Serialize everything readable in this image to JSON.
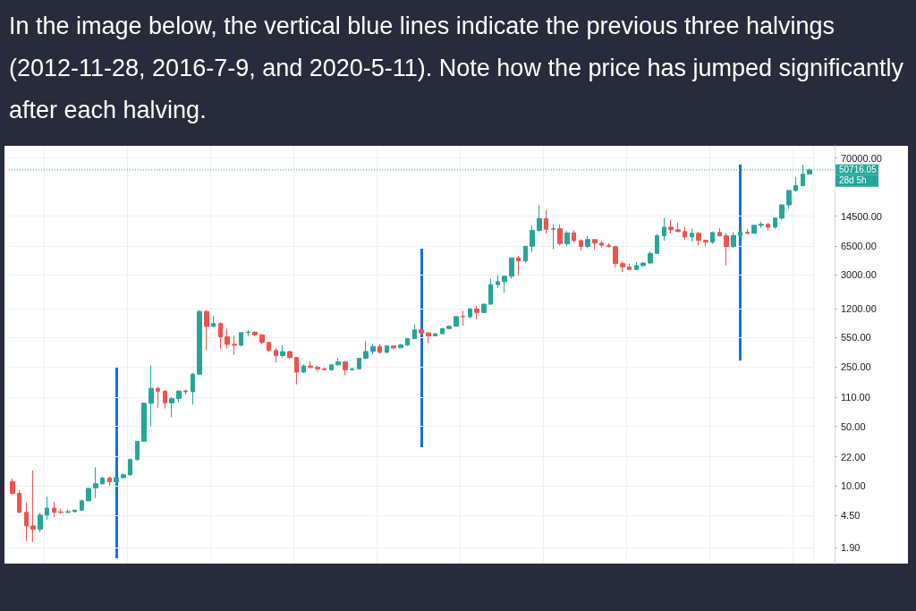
{
  "chart_data": {
    "type": "candlestick",
    "title": "In the image below, the vertical blue lines indicate the previous three halvings (2012-11-28, 2016-7-9, and 2020-5-11). Note how the price has jumped significantly after each halving.",
    "categories": [
      null,
      null,
      null,
      null,
      null,
      null,
      null,
      null,
      null,
      null,
      null,
      null,
      null,
      null,
      null,
      null,
      null,
      null,
      null,
      null,
      null,
      null,
      null,
      null,
      null,
      null,
      null,
      null,
      null,
      null,
      null,
      null,
      null,
      null,
      null,
      null,
      null,
      null,
      null,
      null,
      null,
      null,
      null,
      null,
      null,
      null,
      null,
      null,
      null,
      null,
      null,
      null,
      null,
      null,
      null,
      null,
      null,
      null,
      null,
      null,
      null,
      null,
      null,
      null,
      null,
      null,
      null,
      null,
      null,
      null,
      null,
      null,
      null,
      null,
      null,
      null,
      null,
      null,
      null,
      null,
      null,
      null,
      null,
      null,
      null,
      null,
      null,
      null,
      null,
      null,
      null,
      null,
      null,
      null,
      null,
      null,
      null,
      null,
      null,
      null,
      null,
      null,
      null,
      null,
      null,
      null,
      null,
      null,
      null,
      null,
      null,
      null,
      null,
      null,
      null,
      null
    ],
    "ohlc": [
      [
        11.3,
        12.2,
        7.9,
        8.2
      ],
      [
        8.2,
        8.9,
        4.85,
        4.9
      ],
      [
        4.9,
        6.4,
        2.26,
        3.4
      ],
      [
        3.4,
        15.2,
        2.2,
        3.1
      ],
      [
        3.1,
        4.85,
        2.87,
        4.55
      ],
      [
        4.55,
        7.5,
        4.0,
        5.5
      ],
      [
        5.5,
        6.5,
        4.3,
        4.9
      ],
      [
        4.95,
        5.4,
        4.7,
        4.9
      ],
      [
        4.9,
        5.3,
        4.8,
        5.0
      ],
      [
        5.0,
        5.3,
        4.9,
        5.2
      ],
      [
        5.2,
        6.9,
        5.1,
        6.7
      ],
      [
        6.7,
        9.6,
        6.6,
        9.35
      ],
      [
        9.5,
        16.5,
        7.2,
        10.6
      ],
      [
        10.6,
        12.8,
        10.4,
        12.4
      ],
      [
        12.4,
        12.9,
        10.0,
        11.2
      ],
      [
        11.2,
        12.6,
        10.5,
        12.5
      ],
      [
        12.5,
        14.0,
        12.3,
        13.5
      ],
      [
        13.5,
        21,
        13.2,
        20.4
      ],
      [
        20.4,
        33.5,
        19.6,
        33.4
      ],
      [
        33.4,
        95,
        33.4,
        93
      ],
      [
        93,
        260,
        50,
        139
      ],
      [
        139,
        145,
        82,
        129
      ],
      [
        129,
        132,
        81,
        94
      ],
      [
        94,
        110,
        64,
        106
      ],
      [
        106,
        132,
        96,
        129
      ],
      [
        130,
        135,
        118,
        127
      ],
      [
        127,
        212,
        90,
        204
      ],
      [
        204,
        1150,
        200,
        1110
      ],
      [
        1110,
        1150,
        390,
        740
      ],
      [
        740,
        990,
        730,
        800
      ],
      [
        800,
        830,
        405,
        560
      ],
      [
        560,
        700,
        410,
        457
      ],
      [
        457,
        580,
        345,
        445
      ],
      [
        445,
        635,
        440,
        628
      ],
      [
        628,
        670,
        570,
        636
      ],
      [
        636,
        650,
        565,
        590
      ],
      [
        590,
        600,
        455,
        480
      ],
      [
        480,
        490,
        370,
        387
      ],
      [
        387,
        410,
        280,
        338
      ],
      [
        338,
        445,
        320,
        375
      ],
      [
        375,
        385,
        305,
        320
      ],
      [
        320,
        325,
        155,
        216
      ],
      [
        216,
        265,
        210,
        255
      ],
      [
        255,
        290,
        240,
        245
      ],
      [
        245,
        258,
        220,
        236
      ],
      [
        236,
        245,
        228,
        230
      ],
      [
        230,
        265,
        223,
        263
      ],
      [
        263,
        315,
        255,
        284
      ],
      [
        284,
        290,
        198,
        230
      ],
      [
        230,
        244,
        225,
        236
      ],
      [
        236,
        318,
        235,
        313
      ],
      [
        313,
        500,
        305,
        377
      ],
      [
        377,
        465,
        350,
        432
      ],
      [
        432,
        460,
        355,
        368
      ],
      [
        368,
        448,
        365,
        437
      ],
      [
        437,
        440,
        400,
        416
      ],
      [
        416,
        465,
        414,
        448
      ],
      [
        448,
        540,
        438,
        533
      ],
      [
        533,
        780,
        525,
        675
      ],
      [
        675,
        705,
        585,
        622
      ],
      [
        622,
        628,
        470,
        574
      ],
      [
        574,
        615,
        570,
        608
      ],
      [
        608,
        705,
        605,
        700
      ],
      [
        700,
        755,
        685,
        745
      ],
      [
        745,
        980,
        740,
        965
      ],
      [
        968,
        1130,
        755,
        962
      ],
      [
        962,
        1210,
        920,
        1190
      ],
      [
        1190,
        1290,
        895,
        1080
      ],
      [
        1080,
        1360,
        1060,
        1350
      ],
      [
        1350,
        2700,
        1340,
        2290
      ],
      [
        2290,
        2950,
        2100,
        2480
      ],
      [
        2480,
        2930,
        1840,
        2870
      ],
      [
        2870,
        4760,
        2690,
        4710
      ],
      [
        4710,
        4990,
        2950,
        4340
      ],
      [
        4340,
        6470,
        4110,
        6450
      ],
      [
        6450,
        11300,
        5500,
        9900
      ],
      [
        9900,
        19600,
        9600,
        13600
      ],
      [
        13600,
        17100,
        9100,
        10200
      ],
      [
        10200,
        11750,
        5950,
        10350
      ],
      [
        10350,
        11600,
        6600,
        6930
      ],
      [
        6930,
        9750,
        6450,
        9240
      ],
      [
        9240,
        9950,
        7100,
        7500
      ],
      [
        7500,
        7770,
        5780,
        6400
      ],
      [
        6400,
        8500,
        6100,
        7730
      ],
      [
        7730,
        7770,
        5900,
        7030
      ],
      [
        7030,
        7400,
        6150,
        6630
      ],
      [
        6630,
        6950,
        6250,
        6370
      ],
      [
        6370,
        6560,
        3650,
        4040
      ],
      [
        4040,
        4300,
        3200,
        3700
      ],
      [
        3700,
        4050,
        3400,
        3440
      ],
      [
        3440,
        4200,
        3390,
        3830
      ],
      [
        3830,
        4150,
        3760,
        4100
      ],
      [
        4100,
        5600,
        4050,
        5320
      ],
      [
        5320,
        9000,
        5300,
        8550
      ],
      [
        8550,
        13880,
        7500,
        10800
      ],
      [
        10800,
        13100,
        9100,
        10080
      ],
      [
        10080,
        12300,
        9400,
        9600
      ],
      [
        9600,
        10900,
        7700,
        8300
      ],
      [
        8300,
        10350,
        7300,
        9150
      ],
      [
        9150,
        9500,
        6550,
        7550
      ],
      [
        7550,
        7720,
        6450,
        7190
      ],
      [
        7190,
        9580,
        6870,
        9350
      ],
      [
        9350,
        10500,
        8450,
        8540
      ],
      [
        8540,
        9180,
        3850,
        6410
      ],
      [
        6410,
        9470,
        6160,
        8630
      ],
      [
        8630,
        10070,
        8120,
        9450
      ],
      [
        9450,
        10380,
        8900,
        9140
      ],
      [
        9140,
        11450,
        8990,
        11350
      ],
      [
        11350,
        12470,
        10520,
        11660
      ],
      [
        11660,
        12070,
        9880,
        10790
      ],
      [
        10790,
        14100,
        10380,
        13800
      ],
      [
        13800,
        19900,
        13200,
        19700
      ],
      [
        19700,
        29300,
        17600,
        29000
      ],
      [
        29000,
        41900,
        28100,
        33100
      ],
      [
        33100,
        58300,
        32300,
        45200
      ],
      [
        45200,
        52600,
        44950,
        50716.05
      ]
    ],
    "ylim": [
      1.23,
      97000
    ],
    "yticks": [
      {
        "value": 1.9,
        "label": "1.90"
      },
      {
        "value": 4.5,
        "label": "4.50"
      },
      {
        "value": 10,
        "label": "10.00"
      },
      {
        "value": 22,
        "label": "22.00"
      },
      {
        "value": 50,
        "label": "50.00"
      },
      {
        "value": 110,
        "label": "110.00"
      },
      {
        "value": 250,
        "label": "250.00"
      },
      {
        "value": 550,
        "label": "550.00"
      },
      {
        "value": 1200,
        "label": "1200.00"
      },
      {
        "value": 3000,
        "label": "3000.00"
      },
      {
        "value": 6500,
        "label": "6500.00"
      },
      {
        "value": 14500,
        "label": "14500.00"
      },
      {
        "value": 70000,
        "label": "70000.00"
      }
    ],
    "log": true,
    "grid": true,
    "tick_labels": "y",
    "ref_lines": [
      {
        "axis": "y",
        "value": 50716.05,
        "label": "50716.05",
        "color": "#26a69a",
        "line_style": "dotted"
      }
    ],
    "annotations": [
      "28d 5h"
    ]
  }
}
